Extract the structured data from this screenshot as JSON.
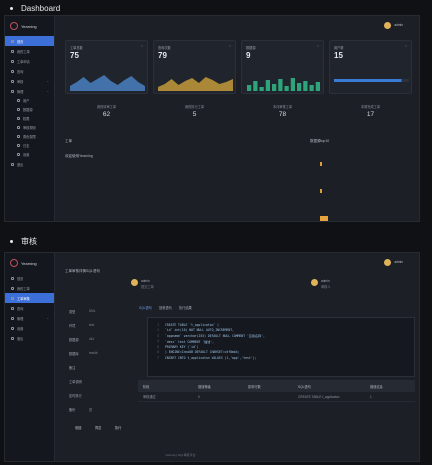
{
  "sections": [
    {
      "title": "Dashboard"
    },
    {
      "title": "审核"
    }
  ],
  "app": {
    "name": "Yearning"
  },
  "user": {
    "name": "admin"
  },
  "dashboard": {
    "menu": [
      {
        "label": "首页",
        "active": true
      },
      {
        "label": "我的工单"
      },
      {
        "label": "工单申请"
      },
      {
        "label": "查询"
      },
      {
        "label": "审核"
      },
      {
        "label": "管理"
      },
      {
        "label": "用户",
        "sub": true
      },
      {
        "label": "数据源",
        "sub": true
      },
      {
        "label": "权限",
        "sub": true
      },
      {
        "label": "审核规则",
        "sub": true
      },
      {
        "label": "角色权限",
        "sub": true
      },
      {
        "label": "日志",
        "sub": true
      },
      {
        "label": "设置",
        "sub": true
      },
      {
        "label": "退出"
      }
    ],
    "cards": [
      {
        "label": "工单总数",
        "value": "75"
      },
      {
        "label": "查询次数",
        "value": "79"
      },
      {
        "label": "数据源",
        "value": "9"
      },
      {
        "label": "用户数",
        "value": "15"
      }
    ],
    "stats": [
      {
        "label": "我的待审工单",
        "value": "62"
      },
      {
        "label": "我的执行工单",
        "value": "5"
      },
      {
        "label": "本月审核工单",
        "value": "78"
      },
      {
        "label": "本周完成工单",
        "value": "17"
      }
    ],
    "panel_left": "工单",
    "panel_left_sub": "欢迎使用Yearning",
    "panel_right": "数据源top10",
    "spark_colors": [
      "#4a7fc0",
      "#c49a3a",
      "#2fa37a",
      "#3a7bd5"
    ]
  },
  "audit": {
    "menu": [
      {
        "label": "首页"
      },
      {
        "label": "我的工单"
      },
      {
        "label": "工单审核",
        "active": true
      },
      {
        "label": "查询"
      },
      {
        "label": "管理"
      },
      {
        "label": "设置"
      },
      {
        "label": "退出"
      }
    ],
    "page_title": "工单审核详情SQL语句",
    "submitter": {
      "name": "admin",
      "note": "提交工单"
    },
    "reviewer": {
      "name": "admin",
      "note": "审核人"
    },
    "fields": [
      {
        "label": "类型",
        "value": "DML"
      },
      {
        "label": "环境",
        "value": "test"
      },
      {
        "label": "数据源",
        "value": "db1"
      },
      {
        "label": "数据库",
        "value": "testdb"
      },
      {
        "label": "备注",
        "value": ""
      },
      {
        "label": "工单说明",
        "value": ""
      },
      {
        "label": "定时执行",
        "value": ""
      },
      {
        "label": "备份",
        "value": "是"
      }
    ],
    "tabs": [
      "SQL语句",
      "回滚语句",
      "执行结果"
    ],
    "code": [
      "CREATE TABLE `t_applicaton` (",
      "  `id` int(10) NOT NULL AUTO_INCREMENT,",
      "  `appname` varchar(255) DEFAULT NULL COMMENT '应用名称',",
      "  `desc` text COMMENT '描述',",
      "  PRIMARY KEY (`id`)",
      ") ENGINE=InnoDB DEFAULT CHARSET=utf8mb4;",
      "INSERT INTO t_applicaton VALUES (1,'app','test');"
    ],
    "table_headers": [
      "阶段",
      "错误等级",
      "影响行数",
      "SQL语句",
      "错误信息"
    ],
    "table_rows": [
      [
        "审核通过",
        "0",
        "",
        "CREATE TABLE t_applicaton",
        "1"
      ]
    ],
    "buttons": [
      "驳回",
      "同意",
      "执行"
    ],
    "footer": "Yearning SQL审核平台"
  }
}
